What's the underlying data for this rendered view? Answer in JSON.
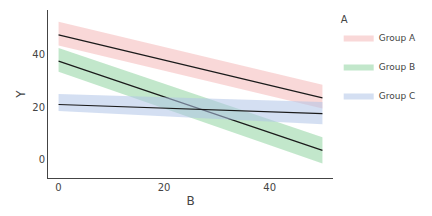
{
  "chart_data": {
    "type": "line",
    "xlabel": "B",
    "ylabel": "Y",
    "legend_title": "A",
    "legend": "right",
    "grid": false,
    "color": "#1a1a1a",
    "x": [
      0,
      50
    ],
    "xlim": [
      -2,
      52
    ],
    "ylim": [
      -7,
      57
    ],
    "xticks": [
      0,
      20,
      40
    ],
    "yticks": [
      0,
      20,
      40
    ],
    "series": [
      {
        "name": "Group A",
        "color": "#f4b8b8",
        "values": [
          47.5,
          23.5
        ],
        "lower": [
          43.5,
          19.5
        ],
        "upper": [
          52.5,
          28.5
        ]
      },
      {
        "name": "Group B",
        "color": "#90d4a0",
        "values": [
          37.5,
          3.5
        ],
        "lower": [
          33.5,
          -1.5
        ],
        "upper": [
          42.5,
          8.5
        ]
      },
      {
        "name": "Group C",
        "color": "#b0c4e8",
        "values": [
          21.0,
          17.5
        ],
        "lower": [
          18.5,
          13.5
        ],
        "upper": [
          25.0,
          22.0
        ]
      }
    ]
  }
}
